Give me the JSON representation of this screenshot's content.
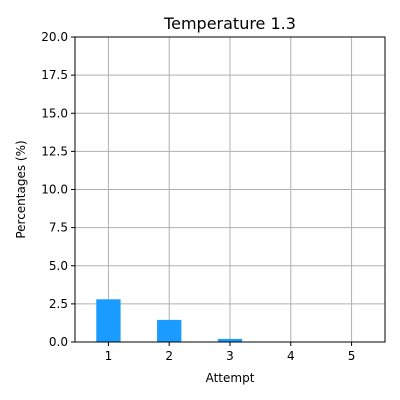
{
  "chart_data": {
    "type": "bar",
    "title": "Temperature 1.3",
    "xlabel": "Attempt",
    "ylabel": "Percentages (%)",
    "categories": [
      "1",
      "2",
      "3",
      "4",
      "5"
    ],
    "x": [
      1,
      2,
      3,
      4,
      5
    ],
    "values": [
      2.8,
      1.45,
      0.2,
      0.0,
      0.0
    ],
    "xlim": [
      0.45,
      5.55
    ],
    "ylim": [
      0,
      20
    ],
    "yticks": [
      "0.0",
      "2.5",
      "5.0",
      "7.5",
      "10.0",
      "12.5",
      "15.0",
      "17.5",
      "20.0"
    ],
    "bar_color": "#1a9bff",
    "grid": true,
    "legend": "none"
  }
}
